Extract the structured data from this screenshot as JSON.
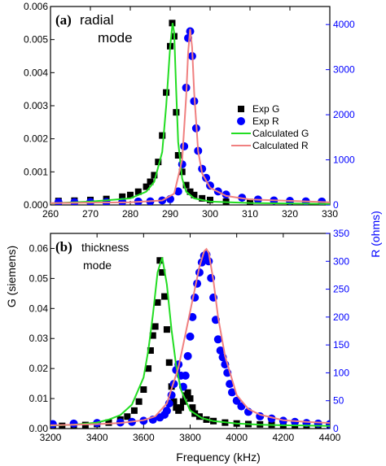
{
  "chart_data": [
    {
      "type": "scatter",
      "panel_label": "(a)",
      "title_lines": [
        "radial",
        "mode"
      ],
      "xlim": [
        260,
        330
      ],
      "x_ticks": [
        260,
        270,
        280,
        290,
        300,
        310,
        320,
        330
      ],
      "ylim_left": [
        0,
        0.006
      ],
      "y_ticks_left": [
        "0.000",
        "0.001",
        "0.002",
        "0.003",
        "0.004",
        "0.005",
        "0.006"
      ],
      "ylim_right": [
        0,
        4400
      ],
      "y_ticks_right": [
        0,
        1000,
        2000,
        3000,
        4000
      ],
      "legend": {
        "placement": "right",
        "entries": [
          "Exp G",
          "Exp R",
          "Calculated G",
          "Calculated R"
        ]
      },
      "series": [
        {
          "name": "Exp G",
          "axis": "left",
          "marker": "square",
          "color": "#000000",
          "x": [
            262,
            266,
            270,
            274,
            278,
            280,
            282,
            284,
            285,
            286,
            287,
            288,
            289,
            290,
            290.5,
            291,
            291.5,
            292,
            293,
            294,
            295,
            296,
            298,
            300,
            304,
            310,
            320,
            328
          ],
          "y": [
            0.00012,
            0.00013,
            0.00015,
            0.00018,
            0.00025,
            0.0003,
            0.0004,
            0.00055,
            0.0007,
            0.0009,
            0.0013,
            0.0021,
            0.0034,
            0.0048,
            0.0055,
            0.0051,
            0.0028,
            0.0015,
            0.001,
            0.0006,
            0.0004,
            0.0003,
            0.0002,
            0.00015,
            0.0001,
            9e-05,
            8e-05,
            8e-05
          ]
        },
        {
          "name": "Exp R",
          "axis": "right",
          "marker": "circle",
          "color": "#0000ff",
          "x": [
            262,
            266,
            270,
            274,
            278,
            282,
            285,
            288,
            290,
            292,
            293,
            293.5,
            294,
            294.5,
            295,
            295.5,
            296,
            296.5,
            297,
            298,
            299,
            300,
            302,
            304,
            308,
            312,
            316,
            320,
            324,
            328
          ],
          "y": [
            60,
            60,
            65,
            65,
            70,
            75,
            80,
            100,
            130,
            300,
            900,
            1300,
            2600,
            3700,
            3850,
            3300,
            2300,
            1700,
            1200,
            800,
            600,
            430,
            300,
            230,
            160,
            120,
            100,
            90,
            80,
            75
          ]
        },
        {
          "name": "Calculated G",
          "axis": "left",
          "line": true,
          "color": "#22dd22",
          "x": [
            260,
            270,
            280,
            284,
            286,
            288,
            289,
            290,
            290.6,
            291,
            291.5,
            292,
            293,
            294,
            296,
            300,
            310,
            330
          ],
          "y": [
            5e-05,
            0.0001,
            0.0002,
            0.0004,
            0.0007,
            0.0016,
            0.003,
            0.0048,
            0.0055,
            0.0052,
            0.0035,
            0.0019,
            0.0008,
            0.0004,
            0.0002,
            0.0001,
            6e-05,
            3e-05
          ]
        },
        {
          "name": "Calculated R",
          "axis": "right",
          "line": true,
          "color": "#f08080",
          "x": [
            260,
            280,
            288,
            291,
            293,
            294,
            294.5,
            295,
            295.5,
            296,
            297,
            298,
            300,
            304,
            310,
            330
          ],
          "y": [
            40,
            60,
            100,
            250,
            1000,
            2400,
            3400,
            3900,
            3500,
            2500,
            1200,
            700,
            380,
            200,
            120,
            60
          ]
        }
      ]
    },
    {
      "type": "scatter",
      "panel_label": "(b)",
      "title_lines": [
        "thickness",
        "mode"
      ],
      "xlim": [
        3200,
        4400
      ],
      "x_ticks": [
        3200,
        3400,
        3600,
        3800,
        4000,
        4200,
        4400
      ],
      "ylim_left": [
        0,
        0.065
      ],
      "y_ticks_left": [
        "0.00",
        "0.01",
        "0.02",
        "0.03",
        "0.04",
        "0.05",
        "0.06"
      ],
      "ylim_right": [
        0,
        350
      ],
      "y_ticks_right": [
        0,
        50,
        100,
        150,
        200,
        250,
        300,
        350
      ],
      "series": [
        {
          "name": "Exp G",
          "axis": "left",
          "marker": "square",
          "color": "#000000",
          "x": [
            3210,
            3250,
            3300,
            3350,
            3400,
            3450,
            3500,
            3530,
            3560,
            3580,
            3600,
            3620,
            3630,
            3640,
            3650,
            3660,
            3670,
            3680,
            3690,
            3700,
            3710,
            3720,
            3730,
            3740,
            3750,
            3760,
            3770,
            3780,
            3790,
            3800,
            3810,
            3820,
            3840,
            3870,
            3900,
            3950,
            4000,
            4050,
            4100,
            4150,
            4200,
            4250,
            4300,
            4350,
            4400
          ],
          "y": [
            0.0008,
            0.0009,
            0.001,
            0.0012,
            0.0015,
            0.002,
            0.003,
            0.004,
            0.006,
            0.009,
            0.013,
            0.02,
            0.026,
            0.031,
            0.034,
            0.042,
            0.056,
            0.052,
            0.044,
            0.033,
            0.022,
            0.014,
            0.009,
            0.007,
            0.006,
            0.007,
            0.009,
            0.011,
            0.012,
            0.01,
            0.007,
            0.005,
            0.004,
            0.003,
            0.0025,
            0.002,
            0.0017,
            0.0015,
            0.0014,
            0.0013,
            0.0012,
            0.0011,
            0.001,
            0.001,
            0.001
          ]
        },
        {
          "name": "Exp R",
          "axis": "right",
          "marker": "circle",
          "color": "#0000ff",
          "x": [
            3210,
            3300,
            3400,
            3500,
            3550,
            3600,
            3640,
            3670,
            3690,
            3700,
            3710,
            3720,
            3730,
            3740,
            3750,
            3760,
            3770,
            3780,
            3790,
            3800,
            3810,
            3820,
            3830,
            3840,
            3850,
            3860,
            3870,
            3880,
            3890,
            3900,
            3910,
            3920,
            3930,
            3940,
            3950,
            3960,
            3970,
            3980,
            4000,
            4020,
            4050,
            4100,
            4150,
            4200,
            4250,
            4300,
            4350,
            4400
          ],
          "y": [
            8,
            9,
            10,
            11,
            12,
            14,
            16,
            20,
            25,
            32,
            45,
            60,
            80,
            105,
            115,
            95,
            75,
            95,
            130,
            165,
            200,
            235,
            260,
            280,
            298,
            310,
            312,
            300,
            270,
            235,
            195,
            160,
            140,
            128,
            115,
            100,
            80,
            65,
            50,
            40,
            30,
            22,
            18,
            14,
            12,
            10,
            9,
            8
          ]
        },
        {
          "name": "Calculated G",
          "axis": "left",
          "line": true,
          "color": "#22dd22",
          "x": [
            3200,
            3300,
            3400,
            3450,
            3500,
            3550,
            3600,
            3620,
            3640,
            3660,
            3680,
            3700,
            3720,
            3740,
            3760,
            3800,
            3850,
            3900,
            4000,
            4100,
            4200,
            4300,
            4400
          ],
          "y": [
            0.001,
            0.0013,
            0.002,
            0.003,
            0.0045,
            0.008,
            0.017,
            0.026,
            0.038,
            0.052,
            0.057,
            0.048,
            0.033,
            0.021,
            0.013,
            0.006,
            0.0035,
            0.0025,
            0.0017,
            0.0013,
            0.0011,
            0.001,
            0.0009
          ]
        },
        {
          "name": "Calculated R",
          "axis": "right",
          "line": true,
          "color": "#f08080",
          "x": [
            3200,
            3300,
            3400,
            3500,
            3600,
            3650,
            3700,
            3750,
            3780,
            3800,
            3820,
            3840,
            3860,
            3870,
            3880,
            3900,
            3920,
            3950,
            4000,
            4050,
            4100,
            4200,
            4300,
            4400
          ],
          "y": [
            6,
            7,
            8,
            10,
            15,
            22,
            45,
            110,
            170,
            210,
            250,
            290,
            318,
            322,
            315,
            265,
            200,
            130,
            60,
            35,
            25,
            15,
            12,
            10
          ]
        }
      ]
    }
  ],
  "axes_text": {
    "x_label": "Frequency (kHz)",
    "y_label_left": "G (siemens)",
    "y_label_right": "R (ohms)"
  }
}
